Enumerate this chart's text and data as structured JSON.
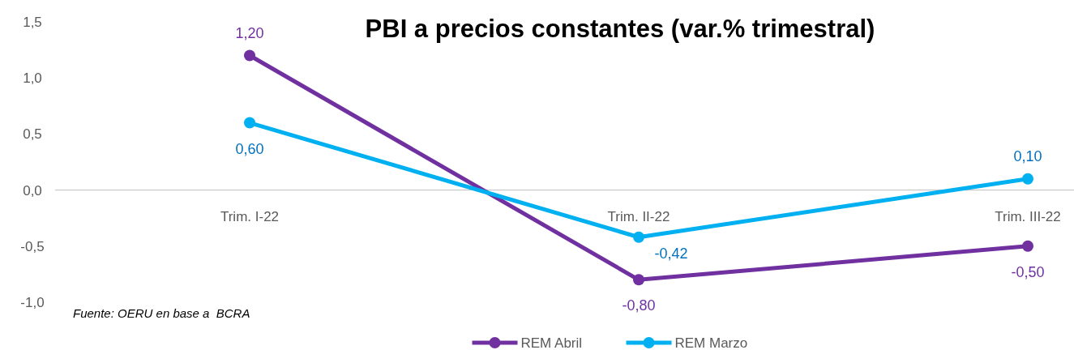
{
  "chart_data": {
    "type": "line",
    "title": "PBI a precios constantes (var.% trimestral)",
    "categories": [
      "Trim. I-22",
      "Trim. II-22",
      "Trim. III-22"
    ],
    "series": [
      {
        "name": "REM Abril",
        "color": "#7030a0",
        "values": [
          1.2,
          -0.8,
          -0.5
        ],
        "value_labels": [
          "1,20",
          "-0,80",
          "-0,50"
        ]
      },
      {
        "name": "REM Marzo",
        "color": "#00b0f0",
        "values": [
          0.6,
          -0.42,
          0.1
        ],
        "value_labels": [
          "0,60",
          "-0,42",
          "0,10"
        ]
      }
    ],
    "ylim": [
      -1,
      1.5
    ],
    "yticks": [
      {
        "value": -1,
        "label": "-1,0"
      },
      {
        "value": -0.5,
        "label": "-0,5"
      },
      {
        "value": 0,
        "label": "0,0"
      },
      {
        "value": 0.5,
        "label": "0,5"
      },
      {
        "value": 1,
        "label": "1,0"
      },
      {
        "value": 1.5,
        "label": "1,5"
      }
    ],
    "marker": "circle",
    "legend": "bottom",
    "grid": false,
    "annotations": [
      "Fuente: OERU en base a  BCRA"
    ]
  }
}
